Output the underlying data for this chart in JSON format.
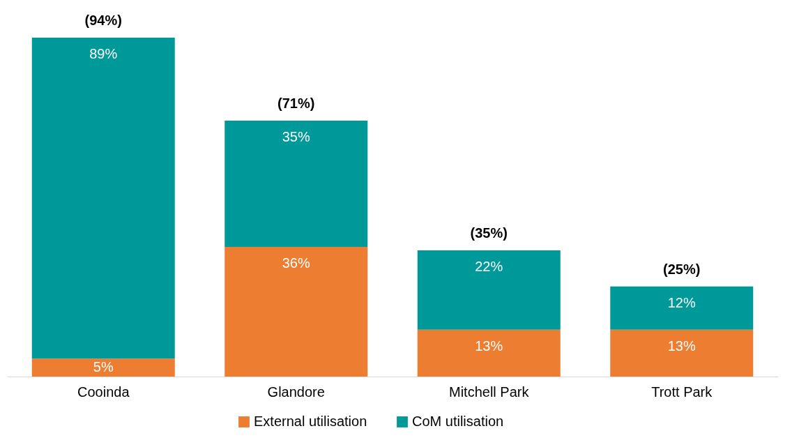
{
  "chart_data": {
    "type": "bar",
    "stacked": true,
    "categories": [
      "Cooinda",
      "Glandore",
      "Mitchell Park",
      "Trott Park"
    ],
    "series": [
      {
        "name": "External utilisation",
        "color": "#ed7d31",
        "values": [
          5,
          36,
          13,
          13
        ],
        "value_labels": [
          "5%",
          "36%",
          "13%",
          "13%"
        ]
      },
      {
        "name": "CoM utilisation",
        "color": "#009999",
        "values": [
          89,
          35,
          22,
          12
        ],
        "value_labels": [
          "89%",
          "35%",
          "22%",
          "12%"
        ]
      }
    ],
    "totals": [
      "(94%)",
      "(71%)",
      "(35%)",
      "(25%)"
    ],
    "legend": "bottom",
    "grid": false
  }
}
